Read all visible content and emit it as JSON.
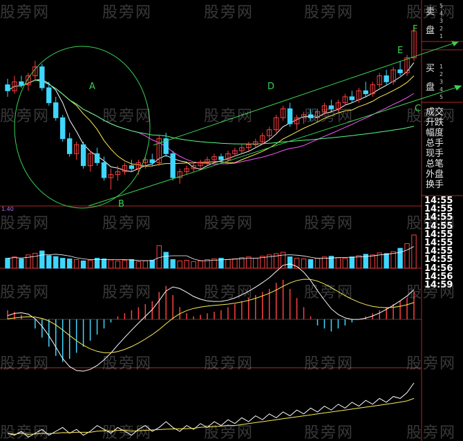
{
  "watermark": "股旁网",
  "price_level": "1.40",
  "pattern_labels": [
    "A",
    "B",
    "C",
    "D",
    "E",
    "F"
  ],
  "side_panel": {
    "sell_label": [
      "卖",
      "盘"
    ],
    "buy_label": [
      "买",
      "盘"
    ],
    "order_levels_sell": [
      "5",
      "4",
      "3",
      "2",
      "1"
    ],
    "order_levels_buy": [
      "1",
      "2",
      "3",
      "4",
      "5"
    ],
    "stats": [
      "成交",
      "升跌",
      "幅度",
      "总手",
      "现手",
      "总笔",
      "外盘",
      "换手"
    ]
  },
  "tick_times": [
    "14:55",
    "14:55",
    "14:55",
    "14:55",
    "14:55",
    "14:55",
    "14:55",
    "14:55",
    "14:56",
    "14:56",
    "14:59"
  ],
  "colors": {
    "up": "#ff4040",
    "down": "#3fd7ff",
    "trend": "#39d353",
    "ma1": "#ffffff",
    "ma2": "#ffee55",
    "ma3": "#ff55ff",
    "ma4": "#55ff88",
    "panel_border": "#b02828"
  },
  "chart_data": [
    {
      "type": "candlestick",
      "title": "",
      "note": "daily K-line with drawn ellipse and upward channel",
      "candles": [
        [
          1.52,
          1.54,
          1.48,
          1.5
        ],
        [
          1.5,
          1.55,
          1.49,
          1.53
        ],
        [
          1.53,
          1.55,
          1.51,
          1.52
        ],
        [
          1.52,
          1.56,
          1.5,
          1.55
        ],
        [
          1.55,
          1.6,
          1.53,
          1.58
        ],
        [
          1.58,
          1.59,
          1.5,
          1.51
        ],
        [
          1.51,
          1.53,
          1.45,
          1.46
        ],
        [
          1.46,
          1.48,
          1.4,
          1.41
        ],
        [
          1.41,
          1.42,
          1.33,
          1.34
        ],
        [
          1.34,
          1.36,
          1.28,
          1.29
        ],
        [
          1.29,
          1.33,
          1.27,
          1.32
        ],
        [
          1.32,
          1.33,
          1.24,
          1.25
        ],
        [
          1.25,
          1.3,
          1.23,
          1.29
        ],
        [
          1.29,
          1.31,
          1.25,
          1.26
        ],
        [
          1.26,
          1.28,
          1.2,
          1.21
        ],
        [
          1.21,
          1.24,
          1.17,
          1.22
        ],
        [
          1.22,
          1.25,
          1.2,
          1.23
        ],
        [
          1.23,
          1.26,
          1.22,
          1.25
        ],
        [
          1.25,
          1.27,
          1.23,
          1.24
        ],
        [
          1.24,
          1.27,
          1.22,
          1.26
        ],
        [
          1.26,
          1.28,
          1.24,
          1.27
        ],
        [
          1.27,
          1.29,
          1.25,
          1.26
        ],
        [
          1.26,
          1.35,
          1.25,
          1.34
        ],
        [
          1.34,
          1.36,
          1.28,
          1.29
        ],
        [
          1.29,
          1.3,
          1.2,
          1.21
        ],
        [
          1.21,
          1.24,
          1.19,
          1.23
        ],
        [
          1.23,
          1.25,
          1.22,
          1.24
        ],
        [
          1.24,
          1.26,
          1.23,
          1.25
        ],
        [
          1.25,
          1.27,
          1.24,
          1.26
        ],
        [
          1.26,
          1.28,
          1.25,
          1.27
        ],
        [
          1.27,
          1.29,
          1.26,
          1.28
        ],
        [
          1.28,
          1.29,
          1.26,
          1.27
        ],
        [
          1.27,
          1.3,
          1.26,
          1.29
        ],
        [
          1.29,
          1.31,
          1.28,
          1.3
        ],
        [
          1.3,
          1.32,
          1.29,
          1.31
        ],
        [
          1.31,
          1.33,
          1.3,
          1.32
        ],
        [
          1.32,
          1.34,
          1.31,
          1.33
        ],
        [
          1.33,
          1.36,
          1.32,
          1.35
        ],
        [
          1.35,
          1.38,
          1.34,
          1.37
        ],
        [
          1.37,
          1.42,
          1.36,
          1.41
        ],
        [
          1.41,
          1.45,
          1.4,
          1.44
        ],
        [
          1.44,
          1.46,
          1.38,
          1.39
        ],
        [
          1.39,
          1.42,
          1.37,
          1.41
        ],
        [
          1.41,
          1.43,
          1.39,
          1.42
        ],
        [
          1.42,
          1.44,
          1.4,
          1.41
        ],
        [
          1.41,
          1.44,
          1.4,
          1.43
        ],
        [
          1.43,
          1.46,
          1.42,
          1.45
        ],
        [
          1.45,
          1.47,
          1.43,
          1.44
        ],
        [
          1.44,
          1.47,
          1.43,
          1.46
        ],
        [
          1.46,
          1.49,
          1.45,
          1.48
        ],
        [
          1.48,
          1.5,
          1.46,
          1.47
        ],
        [
          1.47,
          1.51,
          1.46,
          1.5
        ],
        [
          1.5,
          1.53,
          1.48,
          1.49
        ],
        [
          1.49,
          1.53,
          1.48,
          1.52
        ],
        [
          1.52,
          1.56,
          1.51,
          1.55
        ],
        [
          1.55,
          1.57,
          1.52,
          1.53
        ],
        [
          1.53,
          1.58,
          1.52,
          1.57
        ],
        [
          1.57,
          1.6,
          1.55,
          1.56
        ],
        [
          1.56,
          1.62,
          1.55,
          1.61
        ],
        [
          1.61,
          1.72,
          1.6,
          1.7
        ]
      ],
      "ma_series": [
        {
          "name": "MA5",
          "color": "#ffffff"
        },
        {
          "name": "MA10",
          "color": "#ffee55"
        },
        {
          "name": "MA20",
          "color": "#ff55ff"
        },
        {
          "name": "MA60",
          "color": "#55ff88"
        }
      ]
    },
    {
      "type": "bar",
      "title": "",
      "note": "volume",
      "values": [
        30,
        34,
        28,
        40,
        45,
        52,
        38,
        35,
        30,
        28,
        26,
        22,
        24,
        30,
        28,
        25,
        22,
        24,
        26,
        20,
        22,
        24,
        68,
        48,
        26,
        22,
        24,
        20,
        22,
        26,
        28,
        30,
        26,
        28,
        32,
        34,
        30,
        36,
        40,
        44,
        48,
        34,
        30,
        28,
        26,
        30,
        34,
        36,
        32,
        30,
        34,
        38,
        42,
        40,
        46,
        44,
        50,
        60,
        74,
        100
      ]
    },
    {
      "type": "bar",
      "title": "",
      "note": "MACD histogram with DIF/DEA lines",
      "values": [
        6,
        5,
        3,
        0,
        -6,
        -12,
        -18,
        -24,
        -28,
        -26,
        -22,
        -18,
        -14,
        -10,
        -6,
        -2,
        2,
        4,
        6,
        8,
        10,
        12,
        18,
        22,
        16,
        8,
        4,
        2,
        3,
        4,
        5,
        6,
        8,
        10,
        12,
        14,
        16,
        18,
        20,
        24,
        26,
        20,
        14,
        8,
        2,
        -4,
        -6,
        -8,
        -6,
        -4,
        -2,
        0,
        2,
        4,
        6,
        8,
        10,
        12,
        14,
        18
      ]
    },
    {
      "type": "line",
      "title": "",
      "note": "bottom indicator with smoothed average",
      "values": [
        -12,
        -14,
        -10,
        -16,
        -12,
        -8,
        -14,
        -10,
        -6,
        -12,
        -8,
        -14,
        -10,
        -4,
        -8,
        -12,
        -6,
        -10,
        -14,
        -8,
        -4,
        -10,
        -6,
        0,
        -6,
        -10,
        -4,
        -8,
        -2,
        -6,
        0,
        -4,
        2,
        -2,
        4,
        0,
        6,
        2,
        8,
        4,
        10,
        6,
        12,
        8,
        14,
        10,
        16,
        12,
        18,
        14,
        20,
        16,
        22,
        18,
        24,
        20,
        26,
        24,
        30,
        40
      ]
    }
  ]
}
